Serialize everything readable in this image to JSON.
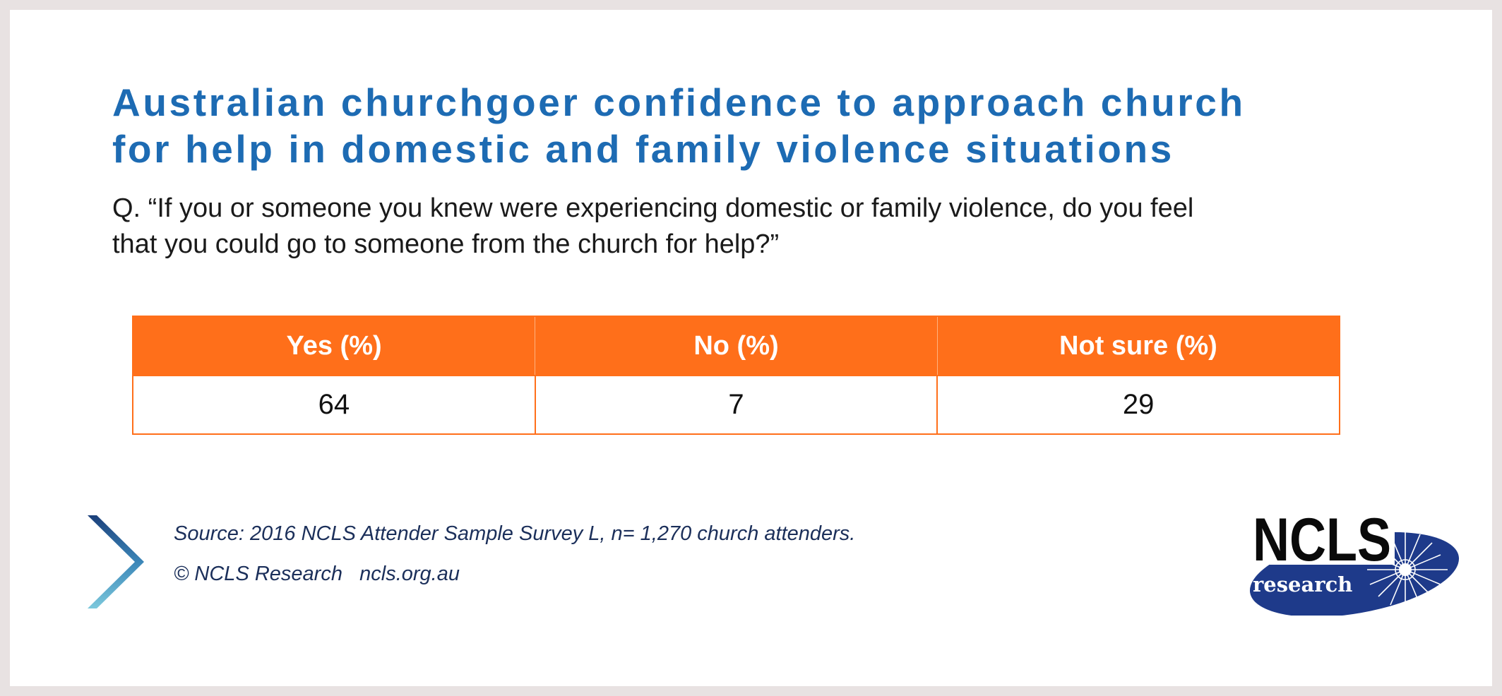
{
  "title_line1": "Australian churchgoer confidence to approach church",
  "title_line2": "for help in domestic and family violence situations",
  "question_line1": "Q. “If you or someone you knew were experiencing domestic or family violence, do you feel",
  "question_line2": "that you could go to someone from the church for help?”",
  "chart_data": {
    "type": "table",
    "columns": [
      "Yes  (%)",
      "No  (%)",
      "Not sure  (%)"
    ],
    "values": [
      "64",
      "7",
      "29"
    ]
  },
  "footer": {
    "source": "Source: 2016 NCLS Attender Sample Survey L, n= 1,270 church attenders.",
    "copyright": "© NCLS Research",
    "website": "ncls.org.au"
  },
  "logo": {
    "wordmark": "NCLS",
    "subtext": "research"
  },
  "colors": {
    "title": "#1d6bb3",
    "header_fill": "#ff6f1a",
    "footer_text": "#1b2f5a",
    "logo_navy": "#1e3a8a"
  }
}
